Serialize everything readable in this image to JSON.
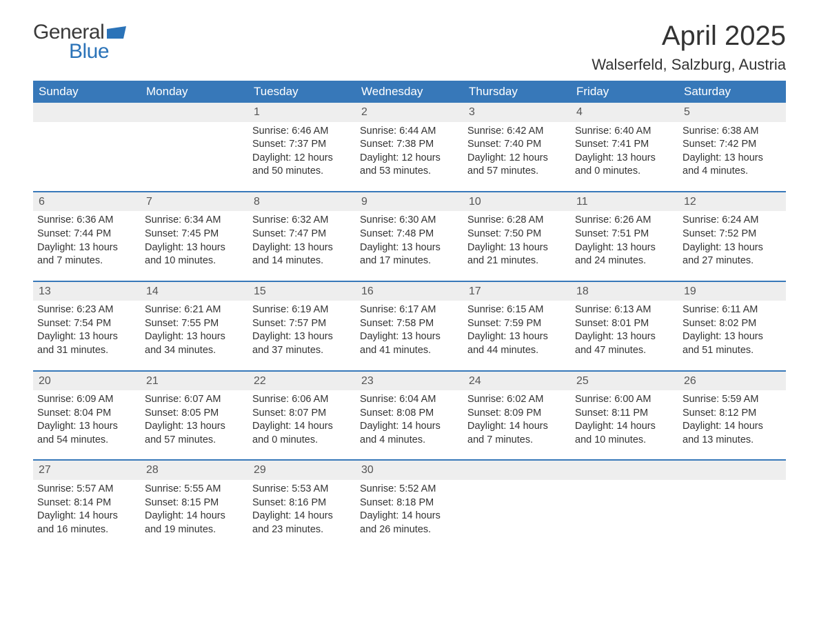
{
  "logo": {
    "text1": "General",
    "text2": "Blue",
    "shape_color": "#2b73b8"
  },
  "header": {
    "title": "April 2025",
    "location": "Walserfeld, Salzburg, Austria",
    "title_color": "#333333",
    "title_fontsize": 40,
    "location_fontsize": 22
  },
  "calendar": {
    "header_bg": "#3778b9",
    "header_fg": "#ffffff",
    "daynum_bg": "#eeeeee",
    "row_border_color": "#3778b9",
    "text_color": "#333333",
    "weekdays": [
      "Sunday",
      "Monday",
      "Tuesday",
      "Wednesday",
      "Thursday",
      "Friday",
      "Saturday"
    ],
    "weeks": [
      [
        null,
        null,
        {
          "day": "1",
          "sunrise": "Sunrise: 6:46 AM",
          "sunset": "Sunset: 7:37 PM",
          "daylight1": "Daylight: 12 hours",
          "daylight2": "and 50 minutes."
        },
        {
          "day": "2",
          "sunrise": "Sunrise: 6:44 AM",
          "sunset": "Sunset: 7:38 PM",
          "daylight1": "Daylight: 12 hours",
          "daylight2": "and 53 minutes."
        },
        {
          "day": "3",
          "sunrise": "Sunrise: 6:42 AM",
          "sunset": "Sunset: 7:40 PM",
          "daylight1": "Daylight: 12 hours",
          "daylight2": "and 57 minutes."
        },
        {
          "day": "4",
          "sunrise": "Sunrise: 6:40 AM",
          "sunset": "Sunset: 7:41 PM",
          "daylight1": "Daylight: 13 hours",
          "daylight2": "and 0 minutes."
        },
        {
          "day": "5",
          "sunrise": "Sunrise: 6:38 AM",
          "sunset": "Sunset: 7:42 PM",
          "daylight1": "Daylight: 13 hours",
          "daylight2": "and 4 minutes."
        }
      ],
      [
        {
          "day": "6",
          "sunrise": "Sunrise: 6:36 AM",
          "sunset": "Sunset: 7:44 PM",
          "daylight1": "Daylight: 13 hours",
          "daylight2": "and 7 minutes."
        },
        {
          "day": "7",
          "sunrise": "Sunrise: 6:34 AM",
          "sunset": "Sunset: 7:45 PM",
          "daylight1": "Daylight: 13 hours",
          "daylight2": "and 10 minutes."
        },
        {
          "day": "8",
          "sunrise": "Sunrise: 6:32 AM",
          "sunset": "Sunset: 7:47 PM",
          "daylight1": "Daylight: 13 hours",
          "daylight2": "and 14 minutes."
        },
        {
          "day": "9",
          "sunrise": "Sunrise: 6:30 AM",
          "sunset": "Sunset: 7:48 PM",
          "daylight1": "Daylight: 13 hours",
          "daylight2": "and 17 minutes."
        },
        {
          "day": "10",
          "sunrise": "Sunrise: 6:28 AM",
          "sunset": "Sunset: 7:50 PM",
          "daylight1": "Daylight: 13 hours",
          "daylight2": "and 21 minutes."
        },
        {
          "day": "11",
          "sunrise": "Sunrise: 6:26 AM",
          "sunset": "Sunset: 7:51 PM",
          "daylight1": "Daylight: 13 hours",
          "daylight2": "and 24 minutes."
        },
        {
          "day": "12",
          "sunrise": "Sunrise: 6:24 AM",
          "sunset": "Sunset: 7:52 PM",
          "daylight1": "Daylight: 13 hours",
          "daylight2": "and 27 minutes."
        }
      ],
      [
        {
          "day": "13",
          "sunrise": "Sunrise: 6:23 AM",
          "sunset": "Sunset: 7:54 PM",
          "daylight1": "Daylight: 13 hours",
          "daylight2": "and 31 minutes."
        },
        {
          "day": "14",
          "sunrise": "Sunrise: 6:21 AM",
          "sunset": "Sunset: 7:55 PM",
          "daylight1": "Daylight: 13 hours",
          "daylight2": "and 34 minutes."
        },
        {
          "day": "15",
          "sunrise": "Sunrise: 6:19 AM",
          "sunset": "Sunset: 7:57 PM",
          "daylight1": "Daylight: 13 hours",
          "daylight2": "and 37 minutes."
        },
        {
          "day": "16",
          "sunrise": "Sunrise: 6:17 AM",
          "sunset": "Sunset: 7:58 PM",
          "daylight1": "Daylight: 13 hours",
          "daylight2": "and 41 minutes."
        },
        {
          "day": "17",
          "sunrise": "Sunrise: 6:15 AM",
          "sunset": "Sunset: 7:59 PM",
          "daylight1": "Daylight: 13 hours",
          "daylight2": "and 44 minutes."
        },
        {
          "day": "18",
          "sunrise": "Sunrise: 6:13 AM",
          "sunset": "Sunset: 8:01 PM",
          "daylight1": "Daylight: 13 hours",
          "daylight2": "and 47 minutes."
        },
        {
          "day": "19",
          "sunrise": "Sunrise: 6:11 AM",
          "sunset": "Sunset: 8:02 PM",
          "daylight1": "Daylight: 13 hours",
          "daylight2": "and 51 minutes."
        }
      ],
      [
        {
          "day": "20",
          "sunrise": "Sunrise: 6:09 AM",
          "sunset": "Sunset: 8:04 PM",
          "daylight1": "Daylight: 13 hours",
          "daylight2": "and 54 minutes."
        },
        {
          "day": "21",
          "sunrise": "Sunrise: 6:07 AM",
          "sunset": "Sunset: 8:05 PM",
          "daylight1": "Daylight: 13 hours",
          "daylight2": "and 57 minutes."
        },
        {
          "day": "22",
          "sunrise": "Sunrise: 6:06 AM",
          "sunset": "Sunset: 8:07 PM",
          "daylight1": "Daylight: 14 hours",
          "daylight2": "and 0 minutes."
        },
        {
          "day": "23",
          "sunrise": "Sunrise: 6:04 AM",
          "sunset": "Sunset: 8:08 PM",
          "daylight1": "Daylight: 14 hours",
          "daylight2": "and 4 minutes."
        },
        {
          "day": "24",
          "sunrise": "Sunrise: 6:02 AM",
          "sunset": "Sunset: 8:09 PM",
          "daylight1": "Daylight: 14 hours",
          "daylight2": "and 7 minutes."
        },
        {
          "day": "25",
          "sunrise": "Sunrise: 6:00 AM",
          "sunset": "Sunset: 8:11 PM",
          "daylight1": "Daylight: 14 hours",
          "daylight2": "and 10 minutes."
        },
        {
          "day": "26",
          "sunrise": "Sunrise: 5:59 AM",
          "sunset": "Sunset: 8:12 PM",
          "daylight1": "Daylight: 14 hours",
          "daylight2": "and 13 minutes."
        }
      ],
      [
        {
          "day": "27",
          "sunrise": "Sunrise: 5:57 AM",
          "sunset": "Sunset: 8:14 PM",
          "daylight1": "Daylight: 14 hours",
          "daylight2": "and 16 minutes."
        },
        {
          "day": "28",
          "sunrise": "Sunrise: 5:55 AM",
          "sunset": "Sunset: 8:15 PM",
          "daylight1": "Daylight: 14 hours",
          "daylight2": "and 19 minutes."
        },
        {
          "day": "29",
          "sunrise": "Sunrise: 5:53 AM",
          "sunset": "Sunset: 8:16 PM",
          "daylight1": "Daylight: 14 hours",
          "daylight2": "and 23 minutes."
        },
        {
          "day": "30",
          "sunrise": "Sunrise: 5:52 AM",
          "sunset": "Sunset: 8:18 PM",
          "daylight1": "Daylight: 14 hours",
          "daylight2": "and 26 minutes."
        },
        null,
        null,
        null
      ]
    ]
  }
}
